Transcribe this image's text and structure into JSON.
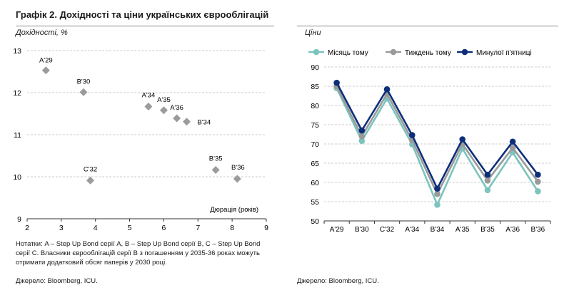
{
  "title": "Графік 2. Дохідності та ціни українських єврооблігацій",
  "left": {
    "ylabel": "Дохідності, %",
    "xlabel": "Дюрація (років)",
    "notes": [
      "Нотатки: A – Step Up Bond серії A, B – Step Up Bond серії B, C – Step Up Bond",
      "серії C. Власники єврооблігацій серії B з погашенням у 2035-36 роках можуть",
      "отримати додатковий обсяг паперів у 2030 році."
    ],
    "source": "Джерело: Bloomberg, ICU."
  },
  "right": {
    "ylabel": "Ціни",
    "source": "Джерело: Bloomberg, ICU."
  },
  "chart_data": [
    {
      "type": "scatter",
      "title": "",
      "ylabel": "Дохідності, %",
      "xlabel": "Дюрація (років)",
      "xlim": [
        2,
        9
      ],
      "ylim": [
        9,
        13
      ],
      "xticks": [
        2,
        3,
        4,
        5,
        6,
        7,
        8,
        9
      ],
      "yticks": [
        9,
        10,
        11,
        12,
        13
      ],
      "grid": "horizontal",
      "marker_color": "#9b9b9b",
      "points": [
        {
          "label": "A'29",
          "x": 2.55,
          "y": 12.53
        },
        {
          "label": "B'30",
          "x": 3.65,
          "y": 12.01
        },
        {
          "label": "A'34",
          "x": 5.55,
          "y": 11.67
        },
        {
          "label": "A'35",
          "x": 6.0,
          "y": 11.58
        },
        {
          "label": "A'36",
          "x": 6.38,
          "y": 11.39
        },
        {
          "label": "B'34",
          "x": 6.67,
          "y": 11.31
        },
        {
          "label": "B'35",
          "x": 7.52,
          "y": 10.16
        },
        {
          "label": "B'36",
          "x": 8.15,
          "y": 9.95
        },
        {
          "label": "C'32",
          "x": 3.85,
          "y": 9.91
        }
      ]
    },
    {
      "type": "line",
      "title": "",
      "ylabel": "Ціни",
      "categories": [
        "A'29",
        "B'30",
        "C'32",
        "A'34",
        "B'34",
        "A'35",
        "B'35",
        "A'36",
        "B'36"
      ],
      "ylim": [
        50,
        90
      ],
      "yticks": [
        50,
        55,
        60,
        65,
        70,
        75,
        80,
        85,
        90
      ],
      "grid": "horizontal",
      "legend": "top",
      "series": [
        {
          "name": "Місяць тому",
          "color": "#7cc4bd",
          "values": [
            84.5,
            70.8,
            81.8,
            69.9,
            54.2,
            68.8,
            58.0,
            67.8,
            57.7
          ]
        },
        {
          "name": "Тиждень тому",
          "color": "#9a9a9a",
          "values": [
            85.0,
            72.0,
            83.0,
            71.0,
            57.0,
            70.0,
            60.5,
            69.0,
            60.2
          ]
        },
        {
          "name": "Минулої п'ятниці",
          "color": "#0d2f7a",
          "values": [
            85.9,
            73.5,
            84.2,
            72.3,
            58.4,
            71.2,
            62.0,
            70.6,
            62.0
          ]
        }
      ]
    }
  ]
}
